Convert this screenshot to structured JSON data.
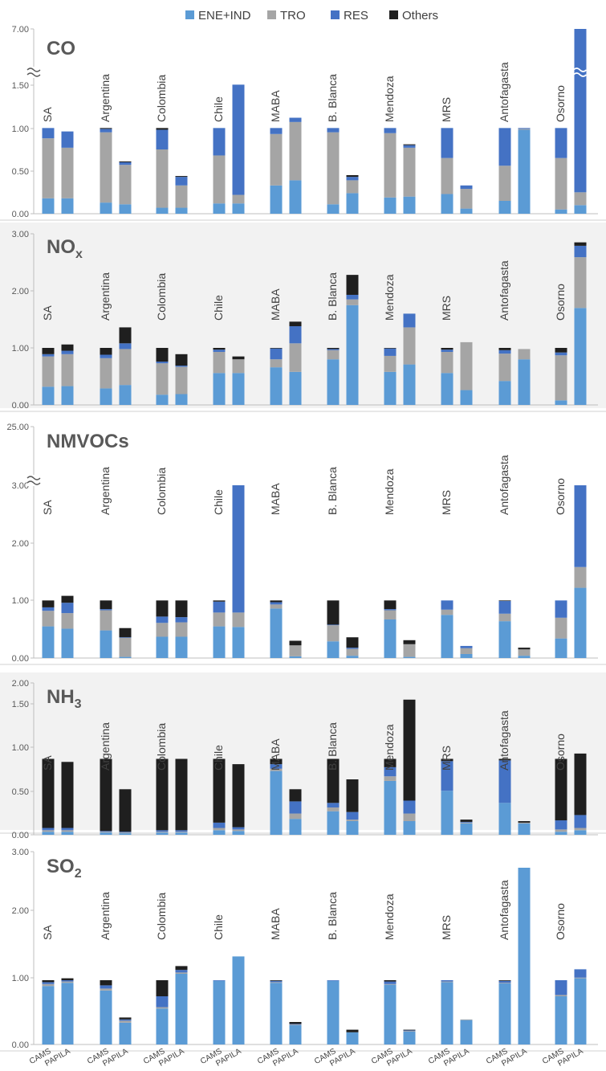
{
  "legend": [
    {
      "label": "ENE+IND",
      "color": "#5B9BD5"
    },
    {
      "label": "TRO",
      "color": "#A5A5A5"
    },
    {
      "label": "RES",
      "color": "#4472C4"
    },
    {
      "label": "Others",
      "color": "#1F1F1F"
    }
  ],
  "bar_labels": [
    "CAMS",
    "PAPILA"
  ],
  "colors": {
    "ene": "#5B9BD5",
    "tro": "#A5A5A5",
    "res": "#4472C4",
    "oth": "#1F1F1F",
    "panel_bg": "#F2F2F2",
    "axis_text": "#595959",
    "title_text": "#595959"
  },
  "chart_data": [
    {
      "type": "bar",
      "stacked": true,
      "title": "CO",
      "background": "white",
      "axis_break": {
        "below": 1.5,
        "above": 7.0
      },
      "ylim": [
        0,
        7.0
      ],
      "ytick_labels": [
        "0.00",
        "0.50",
        "1.00",
        "1.50",
        "7.00"
      ],
      "categories": [
        "SA",
        "Argentina",
        "Colombia",
        "Chile",
        "MABA",
        "B. Blanca",
        "Mendoza",
        "MRS",
        "Antofagasta",
        "Osorno"
      ],
      "series": [
        {
          "name": "ENE+IND",
          "cams": [
            0.18,
            0.13,
            0.07,
            0.12,
            0.33,
            0.11,
            0.19,
            0.23,
            0.15,
            0.05
          ],
          "papila": [
            0.18,
            0.11,
            0.07,
            0.12,
            0.39,
            0.24,
            0.2,
            0.06,
            0.98,
            0.1
          ]
        },
        {
          "name": "TRO",
          "cams": [
            0.7,
            0.82,
            0.68,
            0.56,
            0.6,
            0.84,
            0.75,
            0.42,
            0.41,
            0.6
          ],
          "papila": [
            0.59,
            0.46,
            0.26,
            0.1,
            0.68,
            0.15,
            0.57,
            0.23,
            0.01,
            0.15
          ]
        },
        {
          "name": "RES",
          "cams": [
            0.12,
            0.04,
            0.23,
            0.32,
            0.07,
            0.05,
            0.06,
            0.35,
            0.44,
            0.35
          ],
          "papila": [
            0.19,
            0.03,
            0.1,
            1.33,
            0.05,
            0.04,
            0.03,
            0.04,
            0.01,
            6.75
          ]
        },
        {
          "name": "Others",
          "cams": [
            0.0,
            0.01,
            0.02,
            0.0,
            0.0,
            0.0,
            0.0,
            0.0,
            0.0,
            0.0
          ],
          "papila": [
            0.0,
            0.01,
            0.01,
            0.0,
            0.0,
            0.02,
            0.01,
            0.0,
            0.0,
            0.0
          ]
        }
      ]
    },
    {
      "type": "bar",
      "stacked": true,
      "title": "NOx",
      "title_main": "NO",
      "title_sub": "x",
      "background": "gray",
      "ylim": [
        0,
        3.0
      ],
      "ytick_labels": [
        "0.00",
        "1.00",
        "2.00",
        "3.00"
      ],
      "categories": [
        "SA",
        "Argentina",
        "Colombia",
        "Chile",
        "MABA",
        "B. Blanca",
        "Mendoza",
        "MRS",
        "Antofagasta",
        "Osorno"
      ],
      "series": [
        {
          "name": "ENE+IND",
          "cams": [
            0.32,
            0.29,
            0.18,
            0.56,
            0.66,
            0.8,
            0.58,
            0.56,
            0.42,
            0.08
          ],
          "papila": [
            0.33,
            0.35,
            0.19,
            0.56,
            0.58,
            1.75,
            0.71,
            0.26,
            0.8,
            1.7
          ]
        },
        {
          "name": "TRO",
          "cams": [
            0.53,
            0.53,
            0.55,
            0.37,
            0.14,
            0.16,
            0.28,
            0.37,
            0.48,
            0.79
          ],
          "papila": [
            0.56,
            0.63,
            0.48,
            0.24,
            0.5,
            0.1,
            0.65,
            0.84,
            0.18,
            0.89
          ]
        },
        {
          "name": "RES",
          "cams": [
            0.04,
            0.06,
            0.03,
            0.04,
            0.19,
            0.02,
            0.13,
            0.04,
            0.06,
            0.05
          ],
          "papila": [
            0.06,
            0.1,
            0.02,
            0.0,
            0.3,
            0.08,
            0.24,
            0.0,
            0.0,
            0.2
          ]
        },
        {
          "name": "Others",
          "cams": [
            0.11,
            0.12,
            0.24,
            0.03,
            0.01,
            0.02,
            0.01,
            0.03,
            0.04,
            0.08
          ],
          "papila": [
            0.11,
            0.28,
            0.2,
            0.05,
            0.08,
            0.35,
            0.0,
            0.0,
            0.0,
            0.06
          ]
        }
      ]
    },
    {
      "type": "bar",
      "stacked": true,
      "title": "NMVOCs",
      "background": "white",
      "axis_break": {
        "below": 3.0,
        "above": 25.0
      },
      "ylim": [
        0,
        25.0
      ],
      "ytick_labels": [
        "0.00",
        "1.00",
        "2.00",
        "3.00",
        "25.00"
      ],
      "categories": [
        "SA",
        "Argentina",
        "Colombia",
        "Chile",
        "MABA",
        "B. Blanca",
        "Mendoza",
        "MRS",
        "Antofagasta",
        "Osorno"
      ],
      "series": [
        {
          "name": "ENE+IND",
          "cams": [
            0.55,
            0.48,
            0.37,
            0.55,
            0.86,
            0.29,
            0.67,
            0.75,
            0.64,
            0.34
          ],
          "papila": [
            0.51,
            0.02,
            0.37,
            0.54,
            0.03,
            0.04,
            0.02,
            0.07,
            0.04,
            1.22
          ]
        },
        {
          "name": "TRO",
          "cams": [
            0.27,
            0.35,
            0.24,
            0.24,
            0.07,
            0.28,
            0.16,
            0.09,
            0.13,
            0.36
          ],
          "papila": [
            0.27,
            0.33,
            0.25,
            0.25,
            0.19,
            0.12,
            0.22,
            0.1,
            0.11,
            0.36
          ]
        },
        {
          "name": "RES",
          "cams": [
            0.06,
            0.02,
            0.11,
            0.19,
            0.04,
            0.01,
            0.02,
            0.16,
            0.22,
            0.3
          ],
          "papila": [
            0.18,
            0.01,
            0.09,
            2.23,
            0.0,
            0.02,
            0.0,
            0.04,
            0.0,
            1.42
          ]
        },
        {
          "name": "Others",
          "cams": [
            0.12,
            0.15,
            0.28,
            0.02,
            0.03,
            0.42,
            0.15,
            0.0,
            0.01,
            0.0
          ],
          "papila": [
            0.12,
            0.16,
            0.29,
            0.0,
            0.08,
            0.18,
            0.07,
            0.0,
            0.03,
            0.0
          ]
        }
      ]
    },
    {
      "type": "bar",
      "stacked": true,
      "title": "NH3",
      "title_main": "NH",
      "title_sub": "3",
      "background": "gray",
      "ylim": [
        0,
        2.0
      ],
      "ytick_labels": [
        "0.00",
        "0.50",
        "1.00",
        "1.50",
        "2.00"
      ],
      "categories": [
        "SA",
        "Argentina",
        "Colombia",
        "Chile",
        "MABA",
        "B. Blanca",
        "Mendoza",
        "MRS",
        "Antofagasta",
        "Osorno"
      ],
      "series": [
        {
          "name": "ENE+IND",
          "cams": [
            0.04,
            0.03,
            0.03,
            0.06,
            0.84,
            0.31,
            0.71,
            0.58,
            0.42,
            0.04
          ],
          "papila": [
            0.04,
            0.02,
            0.03,
            0.05,
            0.21,
            0.18,
            0.18,
            0.15,
            0.15,
            0.06
          ]
        },
        {
          "name": "TRO",
          "cams": [
            0.02,
            0.01,
            0.01,
            0.03,
            0.03,
            0.05,
            0.06,
            0.0,
            0.0,
            0.03
          ],
          "papila": [
            0.02,
            0.01,
            0.01,
            0.02,
            0.07,
            0.02,
            0.1,
            0.01,
            0.01,
            0.03
          ]
        },
        {
          "name": "RES",
          "cams": [
            0.03,
            0.01,
            0.02,
            0.07,
            0.06,
            0.06,
            0.12,
            0.39,
            0.56,
            0.12
          ],
          "papila": [
            0.03,
            0.01,
            0.02,
            0.03,
            0.16,
            0.1,
            0.17,
            0.01,
            0.0,
            0.17
          ]
        },
        {
          "name": "Others",
          "cams": [
            0.91,
            0.95,
            0.94,
            0.84,
            0.07,
            0.58,
            0.11,
            0.03,
            0.02,
            0.81
          ],
          "papila": [
            0.87,
            0.56,
            0.94,
            0.83,
            0.16,
            0.43,
            1.33,
            0.03,
            0.02,
            0.81
          ]
        }
      ]
    },
    {
      "type": "bar",
      "stacked": true,
      "title": "SO2",
      "title_main": "SO",
      "title_sub": "2",
      "background": "white",
      "ylim": [
        0,
        3.0
      ],
      "ytick_labels": [
        "0.00",
        "1.00",
        "2.00",
        "3.00"
      ],
      "categories": [
        "SA",
        "Argentina",
        "Colombia",
        "Chile",
        "MABA",
        "B. Blanca",
        "Mendoza",
        "MRS",
        "Antofagasta",
        "Osorno"
      ],
      "series": [
        {
          "name": "ENE+IND",
          "cams": [
            0.91,
            0.84,
            0.56,
            0.99,
            0.96,
            0.99,
            0.93,
            0.97,
            0.95,
            0.75
          ],
          "papila": [
            0.96,
            0.34,
            1.1,
            1.37,
            0.3,
            0.19,
            0.2,
            0.38,
            2.75,
            1.03
          ]
        },
        {
          "name": "TRO",
          "cams": [
            0.03,
            0.03,
            0.02,
            0.0,
            0.01,
            0.0,
            0.01,
            0.01,
            0.01,
            0.02
          ],
          "papila": [
            0.02,
            0.03,
            0.02,
            0.0,
            0.01,
            0.0,
            0.01,
            0.01,
            0.0,
            0.01
          ]
        },
        {
          "name": "RES",
          "cams": [
            0.03,
            0.05,
            0.17,
            0.01,
            0.02,
            0.01,
            0.04,
            0.02,
            0.03,
            0.23
          ],
          "papila": [
            0.02,
            0.02,
            0.04,
            0.0,
            0.01,
            0.0,
            0.01,
            0.0,
            0.0,
            0.13
          ]
        },
        {
          "name": "Others",
          "cams": [
            0.03,
            0.08,
            0.25,
            0.0,
            0.01,
            0.0,
            0.02,
            0.0,
            0.01,
            0.0
          ],
          "papila": [
            0.03,
            0.03,
            0.06,
            0.0,
            0.03,
            0.04,
            0.01,
            0.0,
            0.0,
            0.0
          ]
        }
      ]
    }
  ]
}
